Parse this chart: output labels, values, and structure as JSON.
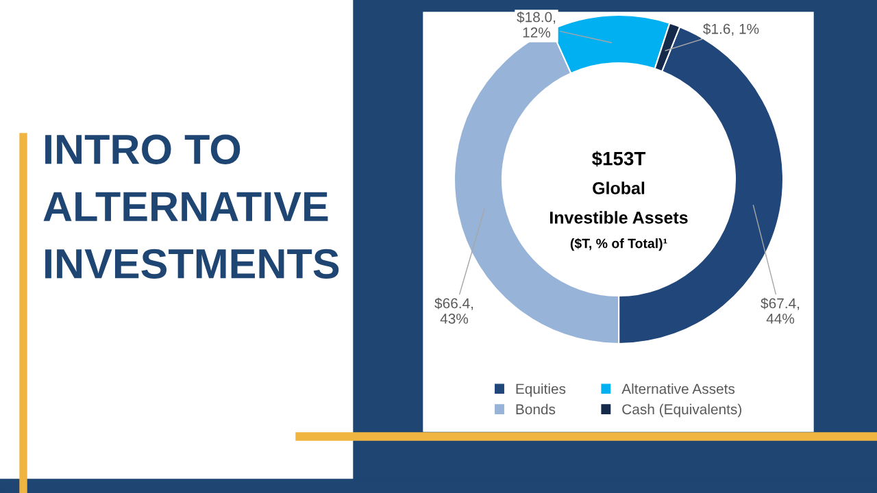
{
  "chart_data": {
    "type": "donut",
    "title": "INTRO TO\nALTERNATIVE\nINVESTMENTS",
    "categories": [
      "Equities",
      "Bonds",
      "Alternative Assets",
      "Cash (Equivalents)"
    ],
    "values": [
      67.4,
      66.4,
      18.0,
      1.6
    ],
    "colors": [
      "#21467a",
      "#97b4d8",
      "#00b0f0",
      "#15294a"
    ],
    "value_labels": [
      "$67.4,\n44%",
      "$66.4,\n43%",
      "$18.0,\n12%",
      "$1.6, 1%"
    ],
    "annotations": [
      "$153T",
      "Global",
      "Investible Assets",
      "($T, % of Total)¹"
    ],
    "legend": "bottom"
  }
}
